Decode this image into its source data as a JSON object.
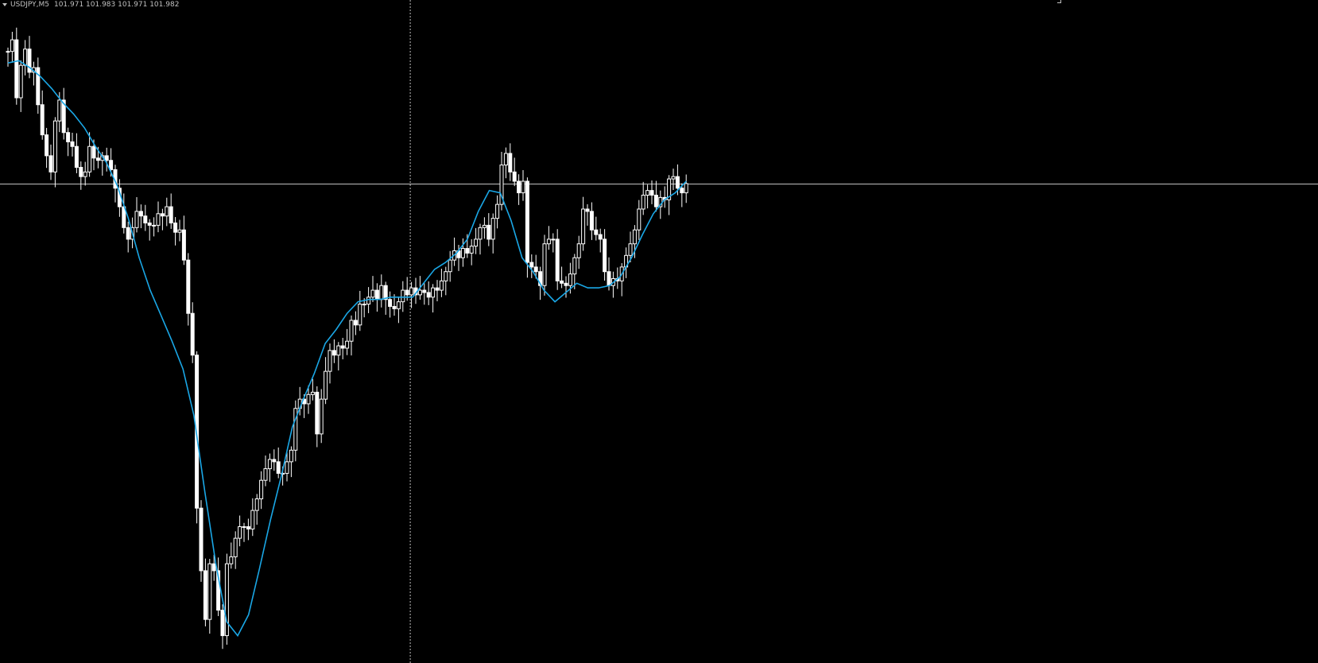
{
  "header": {
    "symbol": "USDJPY,M5",
    "prices": "101.971 101.983 101.971 101.982"
  },
  "colors": {
    "background": "#000000",
    "candle": "#ffffff",
    "ma_line": "#1aa7e6",
    "crosshair": "#bfbfbf"
  },
  "icons": {
    "dropdown": "triangle-down-icon"
  },
  "chart_data": {
    "type": "candlestick",
    "symbol": "USDJPY",
    "timeframe": "M5",
    "ylim": [
      101.78,
      102.055
    ],
    "grid": false,
    "crosshair": {
      "price": 101.982,
      "bar": 94
    },
    "candles_close": [
      102.039,
      102.044,
      102.019,
      102.033,
      102.04,
      102.03,
      102.032,
      102.016,
      102.003,
      101.994,
      101.987,
      102.009,
      102.018,
      102.004,
      102.0,
      101.998,
      101.989,
      101.985,
      101.987,
      101.998,
      101.993,
      101.992,
      101.994,
      101.992,
      101.988,
      101.98,
      101.972,
      101.963,
      101.958,
      101.963,
      101.97,
      101.968,
      101.965,
      101.964,
      101.964,
      101.969,
      101.968,
      101.972,
      101.965,
      101.961,
      101.962,
      101.949,
      101.926,
      101.908,
      101.842,
      101.815,
      101.794,
      101.818,
      101.815,
      101.798,
      101.787,
      101.818,
      101.821,
      101.829,
      101.834,
      101.834,
      101.833,
      101.841,
      101.846,
      101.854,
      101.859,
      101.863,
      101.862,
      101.857,
      101.857,
      101.862,
      101.867,
      101.885,
      101.889,
      101.887,
      101.891,
      101.892,
      101.874,
      101.889,
      101.901,
      101.91,
      101.908,
      101.912,
      101.911,
      101.914,
      101.923,
      101.921,
      101.93,
      101.93,
      101.933,
      101.936,
      101.932,
      101.938,
      101.932,
      101.929,
      101.928,
      101.931,
      101.936,
      101.934,
      101.937,
      101.934,
      101.936,
      101.935,
      101.933,
      101.937,
      101.936,
      101.94,
      101.944,
      101.949,
      101.953,
      101.95,
      101.954,
      101.952,
      101.955,
      101.958,
      101.963,
      101.964,
      101.958,
      101.967,
      101.973,
      101.99,
      101.995,
      101.987,
      101.983,
      101.978,
      101.983,
      101.948,
      101.946,
      101.944,
      101.938,
      101.956,
      101.958,
      101.958,
      101.94,
      101.939,
      101.938,
      101.943,
      101.95,
      101.956,
      101.971,
      101.97,
      101.962,
      101.96,
      101.958,
      101.944,
      101.938,
      101.941,
      101.94,
      101.946,
      101.951,
      101.956,
      101.962,
      101.971,
      101.977,
      101.979,
      101.977,
      101.972,
      101.976,
      101.975,
      101.984,
      101.985,
      101.98,
      101.978,
      101.982
    ],
    "series": [
      {
        "name": "",
        "type": "line",
        "values": [
          102.034,
          102.035,
          102.032,
          102.028,
          102.023,
          102.017,
          102.012,
          102.006,
          101.998,
          101.991,
          101.981,
          101.967,
          101.95,
          101.936,
          101.925,
          101.914,
          101.902,
          101.882,
          101.849,
          101.818,
          101.793,
          101.787,
          101.796,
          101.816,
          101.837,
          101.856,
          101.877,
          101.889,
          101.9,
          101.913,
          101.919,
          101.926,
          101.931,
          101.932,
          101.932,
          101.933,
          101.933,
          101.933,
          101.939,
          101.945,
          101.948,
          101.952,
          101.958,
          101.97,
          101.979,
          101.978,
          101.966,
          101.95,
          101.944,
          101.936,
          101.931,
          101.935,
          101.939,
          101.937,
          101.937,
          101.938,
          101.942,
          101.95,
          101.96,
          101.969,
          101.975,
          101.978,
          101.983
        ]
      }
    ]
  }
}
